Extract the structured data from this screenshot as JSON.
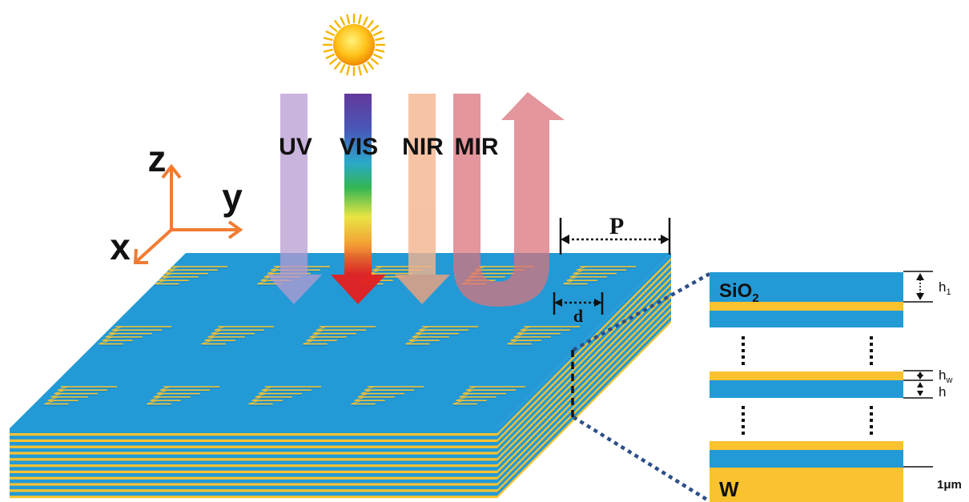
{
  "radiation": {
    "uv": "UV",
    "vis": "VIS",
    "nir": "NIR",
    "mir": "MIR"
  },
  "axes": {
    "x": "x",
    "y": "y",
    "z": "z"
  },
  "dimensions": {
    "period": "P",
    "pattern": "d"
  },
  "stack": {
    "oxide_main": "SiO",
    "oxide_sub": "2",
    "metal": "W",
    "h1_main": "h",
    "h1_sub": "1",
    "hw_main": "h",
    "hw_sub": "w",
    "h": "h",
    "substrate_thickness": "1μm"
  },
  "colors": {
    "oxide": "#239ad6",
    "metal": "#f9c22e",
    "axis": "#f07c33",
    "uv_arrow": "#b79bd1",
    "nir_arrow": "#f5c09e",
    "mir_arrow": "#e0878c",
    "sun": "#f7b500",
    "connector": "#2d4f87"
  }
}
